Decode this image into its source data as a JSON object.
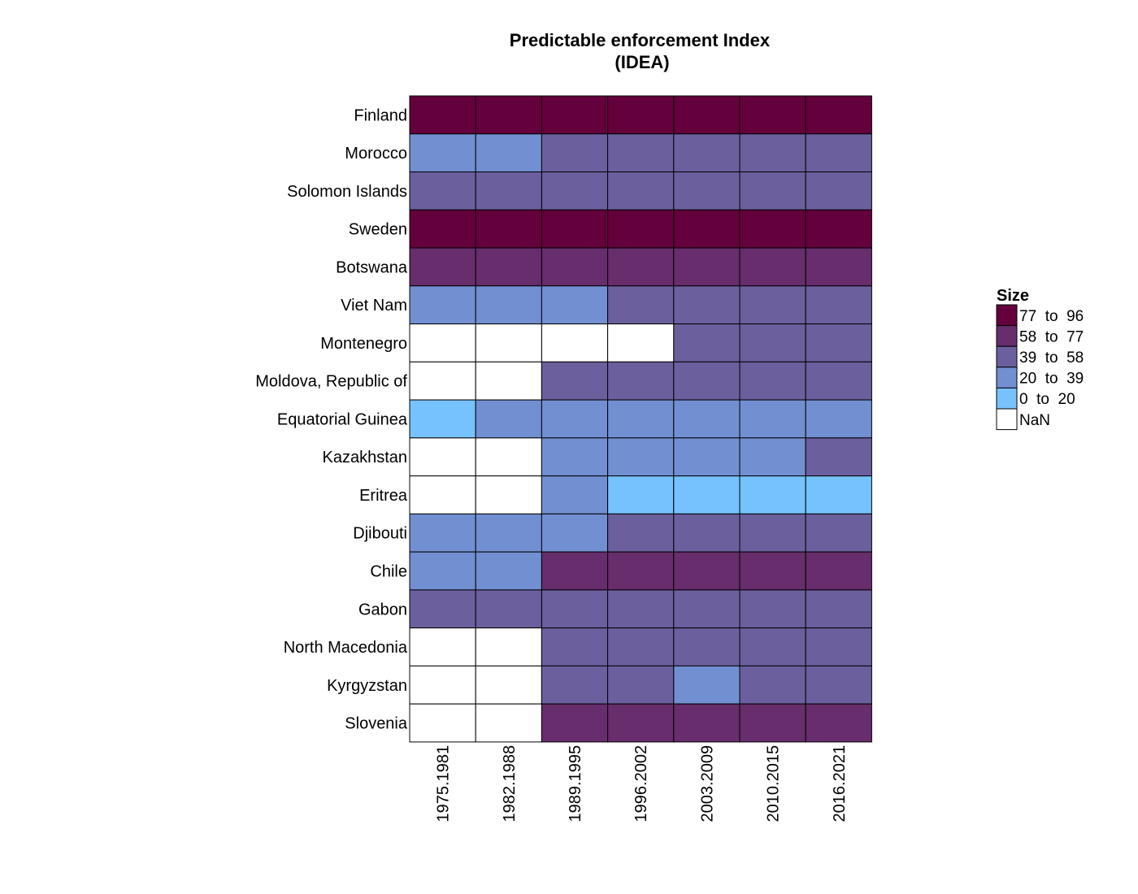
{
  "chart_data": {
    "type": "heatmap",
    "title": "Predictable enforcement Index\n(IDEA)",
    "columns": [
      "1975.1981",
      "1982.1988",
      "1989.1995",
      "1996.2002",
      "2003.2009",
      "2010.2015",
      "2016.2021"
    ],
    "rows": [
      "Finland",
      "Morocco",
      "Solomon Islands",
      "Sweden",
      "Botswana",
      "Viet Nam",
      "Montenegro",
      "Moldova, Republic of",
      "Equatorial Guinea",
      "Kazakhstan",
      "Eritrea",
      "Djibouti",
      "Chile",
      "Gabon",
      "North Macedonia",
      "Kyrgyzstan",
      "Slovenia"
    ],
    "cell_bins": [
      [
        4,
        4,
        4,
        4,
        4,
        4,
        4
      ],
      [
        1,
        1,
        2,
        2,
        2,
        2,
        2
      ],
      [
        2,
        2,
        2,
        2,
        2,
        2,
        2
      ],
      [
        4,
        4,
        4,
        4,
        4,
        4,
        4
      ],
      [
        3,
        3,
        3,
        3,
        3,
        3,
        3
      ],
      [
        1,
        1,
        1,
        2,
        2,
        2,
        2
      ],
      [
        null,
        null,
        null,
        null,
        2,
        2,
        2
      ],
      [
        null,
        null,
        2,
        2,
        2,
        2,
        2
      ],
      [
        0,
        1,
        1,
        1,
        1,
        1,
        1
      ],
      [
        null,
        null,
        1,
        1,
        1,
        1,
        2
      ],
      [
        null,
        null,
        1,
        0,
        0,
        0,
        0
      ],
      [
        1,
        1,
        1,
        2,
        2,
        2,
        2
      ],
      [
        1,
        1,
        3,
        3,
        3,
        3,
        3
      ],
      [
        2,
        2,
        2,
        2,
        2,
        2,
        2
      ],
      [
        null,
        null,
        2,
        2,
        2,
        2,
        2
      ],
      [
        null,
        null,
        2,
        2,
        1,
        2,
        2
      ],
      [
        null,
        null,
        3,
        3,
        3,
        3,
        3
      ]
    ],
    "bins": [
      {
        "label": "0  to  20",
        "range": [
          0,
          20
        ],
        "color": "#76c2ff"
      },
      {
        "label": "20  to  39",
        "range": [
          20,
          39
        ],
        "color": "#728fd1"
      },
      {
        "label": "39  to  58",
        "range": [
          39,
          58
        ],
        "color": "#6c5f9e"
      },
      {
        "label": "58  to  77",
        "range": [
          58,
          77
        ],
        "color": "#672d6c"
      },
      {
        "label": "77  to  96",
        "range": [
          77,
          96
        ],
        "color": "#64003c"
      }
    ],
    "nan_label": "NaN",
    "nan_color": "#ffffff",
    "legend": {
      "title": "Size",
      "position": "right"
    },
    "xlabel": "",
    "ylabel": ""
  }
}
